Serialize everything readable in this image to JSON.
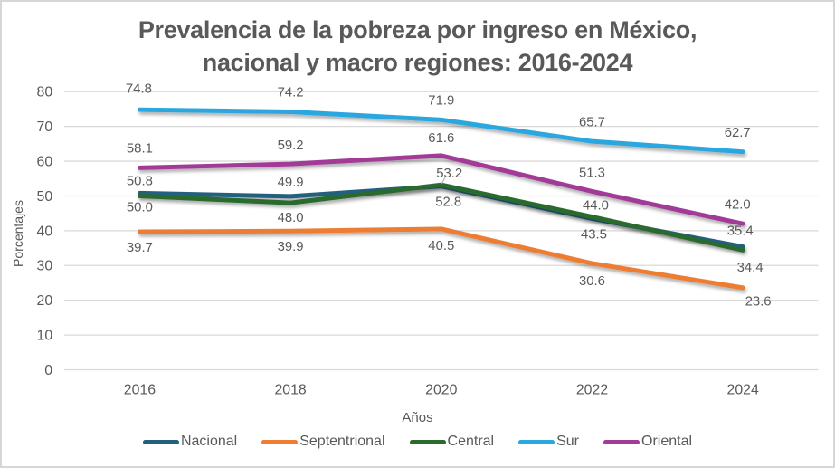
{
  "chart_data": {
    "type": "line",
    "title_lines": [
      "Prevalencia de la pobreza por ingreso en México,",
      "nacional y macro regiones: 2016-2024"
    ],
    "xlabel": "Años",
    "ylabel": "Porcentajes",
    "categories": [
      "2016",
      "2018",
      "2020",
      "2022",
      "2024"
    ],
    "ylim": [
      0,
      80
    ],
    "ytick_step": 10,
    "grid": true,
    "gridline_color": "#d9d9d9",
    "text_color": "#595959",
    "legend_position": "bottom",
    "label_decimals": 1,
    "series": [
      {
        "name": "Nacional",
        "color": "#21617E",
        "values": [
          50.8,
          49.9,
          52.8,
          43.5,
          35.4
        ]
      },
      {
        "name": "Septentrional",
        "color": "#ED7D31",
        "values": [
          39.7,
          39.9,
          40.5,
          30.6,
          23.6
        ]
      },
      {
        "name": "Central",
        "color": "#2C6B2F",
        "values": [
          50.0,
          48.0,
          53.2,
          44.0,
          34.4
        ]
      },
      {
        "name": "Sur",
        "color": "#29A7DE",
        "values": [
          74.8,
          74.2,
          71.9,
          65.7,
          62.7
        ]
      },
      {
        "name": "Oriental",
        "color": "#A23B97",
        "values": [
          58.1,
          59.2,
          61.6,
          51.3,
          42.0
        ]
      }
    ]
  }
}
